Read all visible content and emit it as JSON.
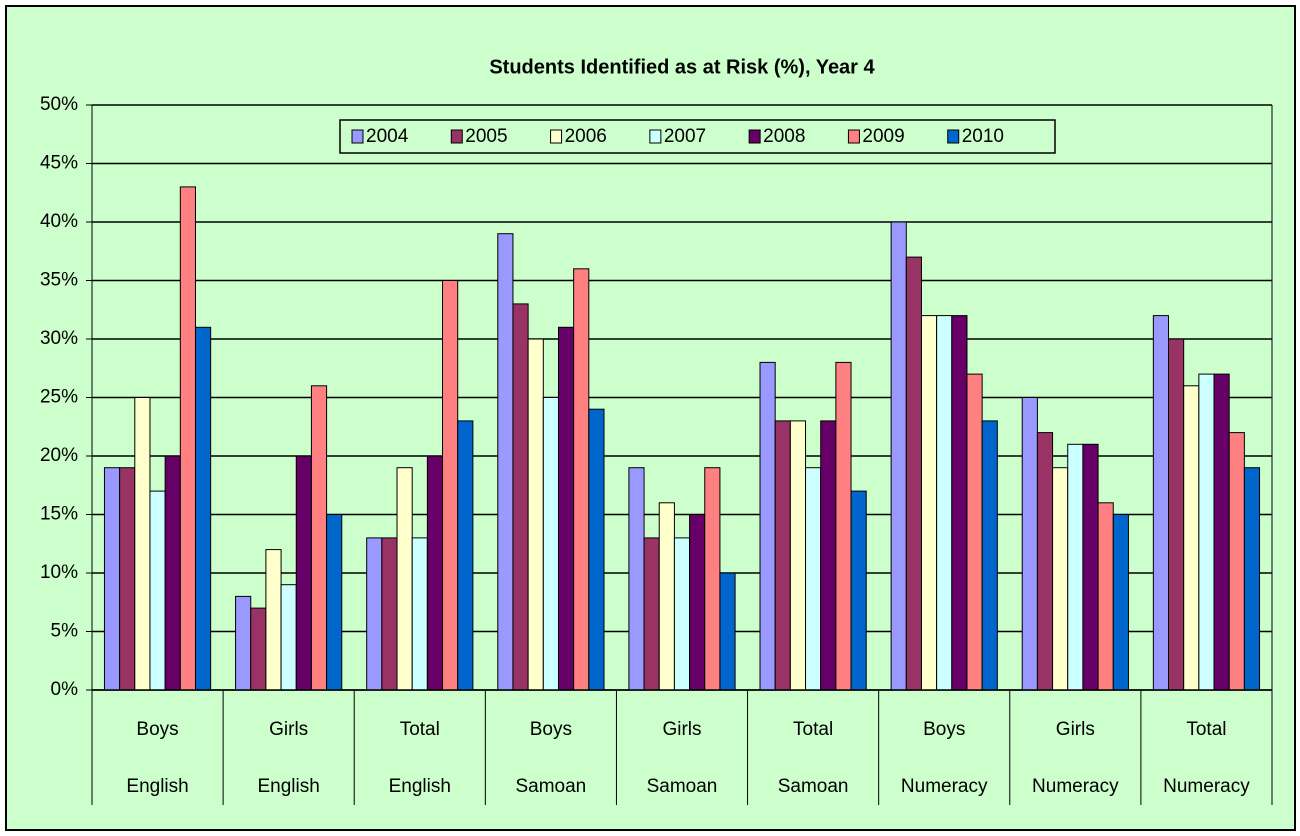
{
  "chart_data": {
    "type": "bar",
    "title": "Students Identified as at Risk (%), Year 4",
    "categories": [
      [
        "Boys",
        "English"
      ],
      [
        "Girls",
        "English"
      ],
      [
        "Total",
        "English"
      ],
      [
        "Boys",
        "Samoan"
      ],
      [
        "Girls",
        "Samoan"
      ],
      [
        "Total",
        "Samoan"
      ],
      [
        "Boys",
        "Numeracy"
      ],
      [
        "Girls",
        "Numeracy"
      ],
      [
        "Total",
        "Numeracy"
      ]
    ],
    "series": [
      {
        "name": "2004",
        "color": "#9999ff",
        "values": [
          19,
          8,
          13,
          39,
          19,
          28,
          40,
          25,
          32
        ]
      },
      {
        "name": "2005",
        "color": "#993366",
        "values": [
          19,
          7,
          13,
          33,
          13,
          23,
          37,
          22,
          30
        ]
      },
      {
        "name": "2006",
        "color": "#ffffcc",
        "values": [
          25,
          12,
          19,
          30,
          16,
          23,
          32,
          19,
          26
        ]
      },
      {
        "name": "2007",
        "color": "#ccffff",
        "values": [
          17,
          9,
          13,
          25,
          13,
          19,
          32,
          21,
          27
        ]
      },
      {
        "name": "2008",
        "color": "#660066",
        "values": [
          20,
          20,
          20,
          31,
          15,
          23,
          32,
          21,
          27
        ]
      },
      {
        "name": "2009",
        "color": "#ff8080",
        "values": [
          43,
          26,
          35,
          36,
          19,
          28,
          27,
          16,
          22
        ]
      },
      {
        "name": "2010",
        "color": "#0066cc",
        "values": [
          31,
          15,
          23,
          24,
          10,
          17,
          23,
          15,
          19
        ]
      }
    ],
    "ylim": [
      0,
      50
    ],
    "yticks": [
      {
        "value": 0,
        "label": "0%"
      },
      {
        "value": 5,
        "label": "5%"
      },
      {
        "value": 10,
        "label": "10%"
      },
      {
        "value": 15,
        "label": "15%"
      },
      {
        "value": 20,
        "label": "20%"
      },
      {
        "value": 25,
        "label": "25%"
      },
      {
        "value": 30,
        "label": "30%"
      },
      {
        "value": 35,
        "label": "35%"
      },
      {
        "value": 40,
        "label": "40%"
      },
      {
        "value": 45,
        "label": "45%"
      },
      {
        "value": 50,
        "label": "50%"
      }
    ],
    "grid": true,
    "legend": "top"
  }
}
